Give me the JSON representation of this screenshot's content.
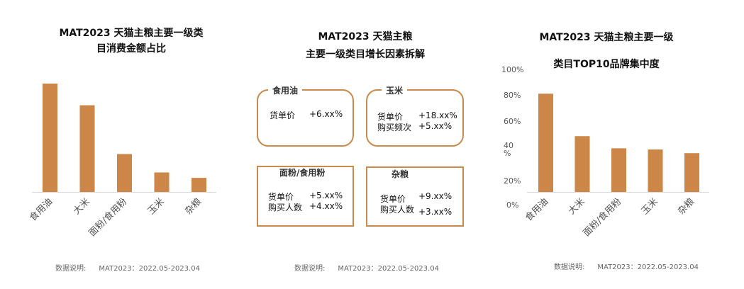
{
  "colors": {
    "bar": "#cc8647",
    "axis": "#d9d9d9",
    "card_border": "#c98a4b"
  },
  "chart_data": [
    {
      "type": "bar",
      "title": "MAT2023 天猫主粮主要一级类目消费金额占比",
      "title_lines": [
        "MAT2023 天猫主粮主要一级类",
        "目消费金额占比"
      ],
      "categories": [
        "食用油",
        "大米",
        "面粉/食用粉",
        "玉米",
        "杂粮"
      ],
      "values": [
        100,
        80,
        35,
        18,
        13
      ],
      "yaxis_shown": false,
      "grid": false
    },
    {
      "type": "bar",
      "title": "MAT2023 天猫主粮主要一级类目TOP10品牌集中度",
      "title_lines": [
        "MAT2023 天猫主粮主要一级",
        "类目TOP10品牌集中度"
      ],
      "categories": [
        "食用油",
        "大米",
        "面粉/食用粉",
        "玉米",
        "杂粮"
      ],
      "values": [
        81,
        46,
        36,
        35,
        32
      ],
      "yticks": [
        "100%",
        "80%",
        "60%",
        "40\n%",
        "20%",
        "0%"
      ],
      "ylim": [
        0,
        100
      ],
      "grid": false
    }
  ],
  "middle": {
    "title_lines": [
      "MAT2023 天猫主粮",
      "主要一级类目增长因素拆解"
    ],
    "cards": [
      {
        "title": "食用油",
        "rows": [
          {
            "label": "货单价",
            "value": "+6.xx%"
          }
        ]
      },
      {
        "title": "玉米",
        "rows": [
          {
            "label": "货单价",
            "value": "+18.xx%"
          },
          {
            "label": "购买频次",
            "value": "+5.xx%"
          }
        ]
      },
      {
        "title": "面粉/食用粉",
        "rows": [
          {
            "label": "货单价",
            "value": "+5.xx%"
          },
          {
            "label": "购买人数",
            "value": "+4.xx%"
          }
        ]
      },
      {
        "title": "杂粮",
        "rows": [
          {
            "label": "货单价",
            "value": "+9.xx%"
          },
          {
            "label": "购买人数",
            "value": "+3.xx%"
          }
        ]
      }
    ]
  },
  "note": {
    "label": "数据说明:",
    "value": "MAT2023：2022.05-2023.04"
  }
}
